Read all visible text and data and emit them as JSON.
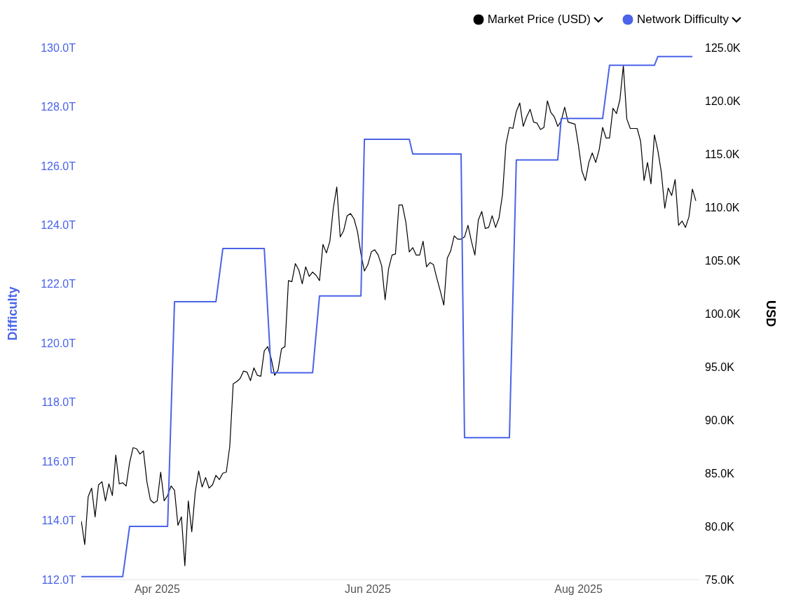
{
  "chart_data": {
    "type": "line",
    "ylabel": "Difficulty",
    "y2label": "USD",
    "legend": "top right",
    "marker": "none",
    "xlim": [
      "2025-03-10",
      "2025-09-05"
    ],
    "xticks": [
      {
        "value": "2025-04-01",
        "label": "Apr 2025"
      },
      {
        "value": "2025-06-01",
        "label": "Jun 2025"
      },
      {
        "value": "2025-08-01",
        "label": "Aug 2025"
      }
    ],
    "ylim": [
      112,
      130
    ],
    "yticks": [
      {
        "value": 112,
        "label": "112.0T"
      },
      {
        "value": 114,
        "label": "114.0T"
      },
      {
        "value": 116,
        "label": "116.0T"
      },
      {
        "value": 118,
        "label": "118.0T"
      },
      {
        "value": 120,
        "label": "120.0T"
      },
      {
        "value": 122,
        "label": "122.0T"
      },
      {
        "value": 124,
        "label": "124.0T"
      },
      {
        "value": 126,
        "label": "126.0T"
      },
      {
        "value": 128,
        "label": "128.0T"
      },
      {
        "value": 130,
        "label": "130.0T"
      }
    ],
    "y2lim": [
      75,
      125
    ],
    "y2ticks": [
      {
        "value": 75,
        "label": "75.0K"
      },
      {
        "value": 80,
        "label": "80.0K"
      },
      {
        "value": 85,
        "label": "85.0K"
      },
      {
        "value": 90,
        "label": "90.0K"
      },
      {
        "value": 95,
        "label": "95.0K"
      },
      {
        "value": 100,
        "label": "100.0K"
      },
      {
        "value": 105,
        "label": "105.0K"
      },
      {
        "value": 110,
        "label": "110.0K"
      },
      {
        "value": 115,
        "label": "115.0K"
      },
      {
        "value": 120,
        "label": "120.0K"
      },
      {
        "value": 125,
        "label": "125.0K"
      }
    ],
    "x": [
      "2025-03-10",
      "2025-03-11",
      "2025-03-12",
      "2025-03-13",
      "2025-03-14",
      "2025-03-15",
      "2025-03-16",
      "2025-03-17",
      "2025-03-18",
      "2025-03-19",
      "2025-03-20",
      "2025-03-21",
      "2025-03-22",
      "2025-03-23",
      "2025-03-24",
      "2025-03-25",
      "2025-03-26",
      "2025-03-27",
      "2025-03-28",
      "2025-03-29",
      "2025-03-30",
      "2025-03-31",
      "2025-04-01",
      "2025-04-02",
      "2025-04-03",
      "2025-04-04",
      "2025-04-05",
      "2025-04-06",
      "2025-04-07",
      "2025-04-08",
      "2025-04-09",
      "2025-04-10",
      "2025-04-11",
      "2025-04-12",
      "2025-04-13",
      "2025-04-14",
      "2025-04-15",
      "2025-04-16",
      "2025-04-17",
      "2025-04-18",
      "2025-04-19",
      "2025-04-20",
      "2025-04-21",
      "2025-04-22",
      "2025-04-23",
      "2025-04-24",
      "2025-04-25",
      "2025-04-26",
      "2025-04-27",
      "2025-04-28",
      "2025-04-29",
      "2025-04-30",
      "2025-05-01",
      "2025-05-02",
      "2025-05-03",
      "2025-05-04",
      "2025-05-05",
      "2025-05-06",
      "2025-05-07",
      "2025-05-08",
      "2025-05-09",
      "2025-05-10",
      "2025-05-11",
      "2025-05-12",
      "2025-05-13",
      "2025-05-14",
      "2025-05-15",
      "2025-05-16",
      "2025-05-17",
      "2025-05-18",
      "2025-05-19",
      "2025-05-20",
      "2025-05-21",
      "2025-05-22",
      "2025-05-23",
      "2025-05-24",
      "2025-05-25",
      "2025-05-26",
      "2025-05-27",
      "2025-05-28",
      "2025-05-29",
      "2025-05-30",
      "2025-05-31",
      "2025-06-01",
      "2025-06-02",
      "2025-06-03",
      "2025-06-04",
      "2025-06-05",
      "2025-06-06",
      "2025-06-07",
      "2025-06-08",
      "2025-06-09",
      "2025-06-10",
      "2025-06-11",
      "2025-06-12",
      "2025-06-13",
      "2025-06-14",
      "2025-06-15",
      "2025-06-16",
      "2025-06-17",
      "2025-06-18",
      "2025-06-19",
      "2025-06-20",
      "2025-06-21",
      "2025-06-22",
      "2025-06-23",
      "2025-06-24",
      "2025-06-25",
      "2025-06-26",
      "2025-06-27",
      "2025-06-28",
      "2025-06-29",
      "2025-06-30",
      "2025-07-01",
      "2025-07-02",
      "2025-07-03",
      "2025-07-04",
      "2025-07-05",
      "2025-07-06",
      "2025-07-07",
      "2025-07-08",
      "2025-07-09",
      "2025-07-10",
      "2025-07-11",
      "2025-07-12",
      "2025-07-13",
      "2025-07-14",
      "2025-07-15",
      "2025-07-16",
      "2025-07-17",
      "2025-07-18",
      "2025-07-19",
      "2025-07-20",
      "2025-07-21",
      "2025-07-22",
      "2025-07-23",
      "2025-07-24",
      "2025-07-25",
      "2025-07-26",
      "2025-07-27",
      "2025-07-28",
      "2025-07-29",
      "2025-07-30",
      "2025-07-31",
      "2025-08-01",
      "2025-08-02",
      "2025-08-03",
      "2025-08-04",
      "2025-08-05",
      "2025-08-06",
      "2025-08-07",
      "2025-08-08",
      "2025-08-09",
      "2025-08-10",
      "2025-08-11",
      "2025-08-12",
      "2025-08-13",
      "2025-08-14",
      "2025-08-15",
      "2025-08-16",
      "2025-08-17",
      "2025-08-18",
      "2025-08-19",
      "2025-08-20",
      "2025-08-21",
      "2025-08-22",
      "2025-08-23",
      "2025-08-24",
      "2025-08-25",
      "2025-08-26",
      "2025-08-27",
      "2025-08-28",
      "2025-08-29",
      "2025-08-30",
      "2025-08-31",
      "2025-09-01",
      "2025-09-02",
      "2025-09-03",
      "2025-09-04"
    ],
    "series": [
      {
        "name": "Market Price (USD)",
        "color": "#000000",
        "axis": "y2",
        "values": [
          80.5,
          78.3,
          82.8,
          83.6,
          80.9,
          83.9,
          84.2,
          82.4,
          84.0,
          82.9,
          86.7,
          84.0,
          84.1,
          83.8,
          86.0,
          87.4,
          87.3,
          86.8,
          87.1,
          84.2,
          82.5,
          82.2,
          82.4,
          85.1,
          82.4,
          82.9,
          83.8,
          83.4,
          80.1,
          80.9,
          76.3,
          82.4,
          79.5,
          83.2,
          85.2,
          83.7,
          84.6,
          83.6,
          83.9,
          84.8,
          84.4,
          85.0,
          85.1,
          87.5,
          93.4,
          93.6,
          93.9,
          94.6,
          94.5,
          93.7,
          94.9,
          94.2,
          94.1,
          96.5,
          96.9,
          95.8,
          94.2,
          94.7,
          96.7,
          96.9,
          103.1,
          103.0,
          104.7,
          104.1,
          102.8,
          104.4,
          103.5,
          103.9,
          103.6,
          103.1,
          106.5,
          105.7,
          106.8,
          109.9,
          111.9,
          107.2,
          107.8,
          109.2,
          109.4,
          108.9,
          107.7,
          105.6,
          104.0,
          104.6,
          105.8,
          106.0,
          105.5,
          104.5,
          101.3,
          104.2,
          105.5,
          105.6,
          110.2,
          110.2,
          108.6,
          105.8,
          106.2,
          105.5,
          105.5,
          106.8,
          104.4,
          104.8,
          104.6,
          103.3,
          102.1,
          100.8,
          105.2,
          105.9,
          107.3,
          107.0,
          107.0,
          107.2,
          108.3,
          106.8,
          105.5,
          108.8,
          109.6,
          108.0,
          108.1,
          109.2,
          108.1,
          109.0,
          111.2,
          115.9,
          117.5,
          117.4,
          119.0,
          119.8,
          117.6,
          118.5,
          119.2,
          118.0,
          117.9,
          117.3,
          117.5,
          120.0,
          118.9,
          118.5,
          117.6,
          118.1,
          119.4,
          118.0,
          117.9,
          117.8,
          115.8,
          113.4,
          112.5,
          114.2,
          115.1,
          114.2,
          115.4,
          117.5,
          116.5,
          116.5,
          119.3,
          118.8,
          120.1,
          123.3,
          118.3,
          117.4,
          117.4,
          117.4,
          116.2,
          112.5,
          114.2,
          112.2,
          116.8,
          115.3,
          113.3,
          109.9,
          111.8,
          111.1,
          112.6,
          108.3,
          108.7,
          108.1,
          109.1,
          111.7,
          110.6
        ]
      },
      {
        "name": "Network Difficulty",
        "color": "#4a63e8",
        "x": [
          "2025-03-10",
          "2025-03-22",
          "2025-03-24",
          "2025-04-04",
          "2025-04-06",
          "2025-04-18",
          "2025-04-20",
          "2025-05-02",
          "2025-05-04",
          "2025-05-16",
          "2025-05-18",
          "2025-05-30",
          "2025-05-31",
          "2025-06-13",
          "2025-06-14",
          "2025-06-28",
          "2025-06-29",
          "2025-07-12",
          "2025-07-14",
          "2025-07-26",
          "2025-07-27",
          "2025-08-08",
          "2025-08-10",
          "2025-08-23",
          "2025-08-24",
          "2025-09-03"
        ],
        "values": [
          112.1,
          112.1,
          113.8,
          113.8,
          121.4,
          121.4,
          123.2,
          123.2,
          119.0,
          119.0,
          121.6,
          121.6,
          126.9,
          126.9,
          126.4,
          126.4,
          116.8,
          116.8,
          126.2,
          126.2,
          127.6,
          127.6,
          129.4,
          129.4,
          129.7,
          129.7
        ]
      }
    ]
  }
}
